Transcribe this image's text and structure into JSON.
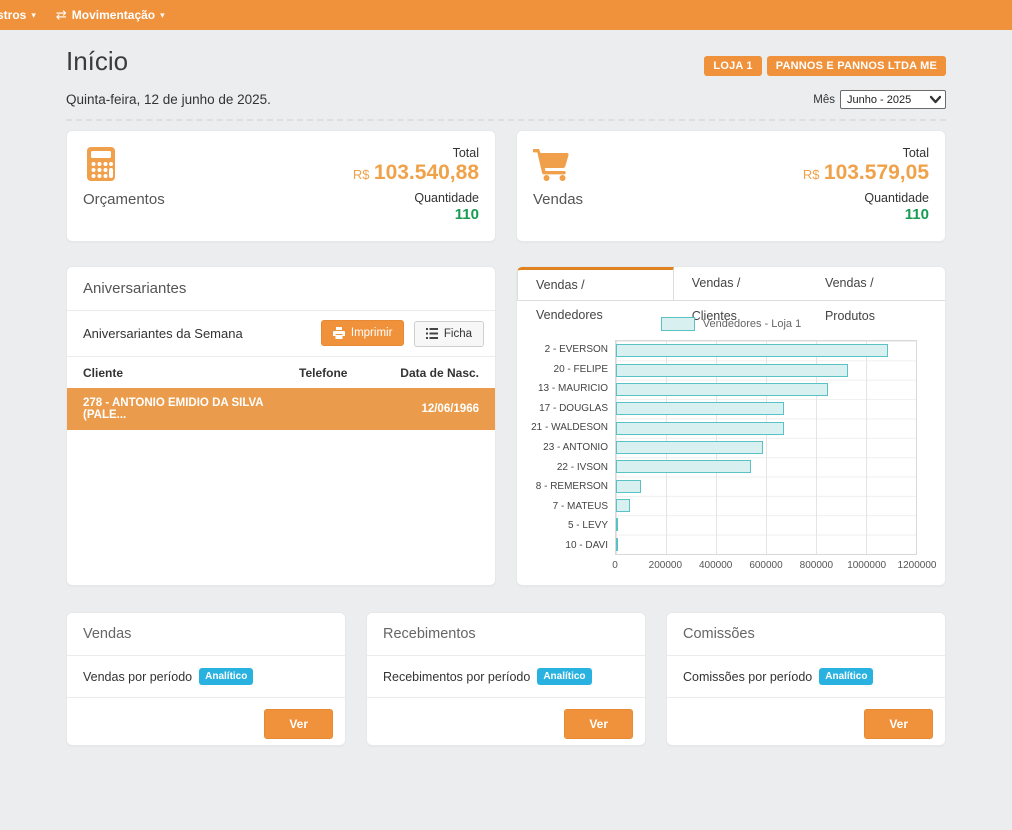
{
  "navbar": {
    "items": [
      {
        "label": "stros"
      },
      {
        "label": "Movimentação"
      }
    ]
  },
  "header": {
    "title": "Início",
    "store_badge": "LOJA 1",
    "company_badge": "PANNOS E PANNOS LTDA ME",
    "date": "Quinta-feira, 12 de junho de 2025.",
    "month_label": "Mês",
    "month_value": "Junho - 2025"
  },
  "summary_cards": [
    {
      "title": "Orçamentos",
      "icon": "calculator-icon",
      "total_label": "Total",
      "currency": "R$",
      "total": "103.540,88",
      "quantity_label": "Quantidade",
      "quantity": "110"
    },
    {
      "title": "Vendas",
      "icon": "cart-icon",
      "total_label": "Total",
      "currency": "R$",
      "total": "103.579,05",
      "quantity_label": "Quantidade",
      "quantity": "110"
    }
  ],
  "birthdays": {
    "title": "Aniversariantes",
    "subtitle": "Aniversariantes da Semana",
    "print_label": "Imprimir",
    "ficha_label": "Ficha",
    "columns": [
      "Cliente",
      "Telefone",
      "Data de Nasc."
    ],
    "rows": [
      {
        "cliente": "278 - ANTONIO EMIDIO DA SILVA (PALE...",
        "telefone": "",
        "nascimento": "12/06/1966"
      }
    ]
  },
  "sales_panel": {
    "tabs": [
      "Vendas / Vendedores",
      "Vendas / Clientes",
      "Vendas / Produtos"
    ],
    "active_tab": 0
  },
  "chart_data": {
    "type": "bar",
    "orientation": "horizontal",
    "title": "Vendedores - Loja 1",
    "legend": "Vendedores - Loja 1",
    "legend_position": "top-center",
    "grid": true,
    "categories": [
      "2 - EVERSON",
      "20 - FELIPE",
      "13 - MAURICIO",
      "17 - DOUGLAS",
      "21 - WALDESON",
      "23 - ANTONIO",
      "22 - IVSON",
      "8 - REMERSON",
      "7 - MATEUS",
      "5 - LEVY",
      "10 - DAVI"
    ],
    "values": [
      1086000,
      929000,
      846000,
      673000,
      673000,
      587000,
      539000,
      100000,
      57000,
      8000,
      2000
    ],
    "xlim": [
      0,
      1200000
    ],
    "tick_labels": [
      "0",
      "200000",
      "400000",
      "600000",
      "800000",
      "1000000",
      "1200000"
    ],
    "xlabel": "",
    "ylabel": "",
    "bar_fill": "#d9f0f0",
    "bar_border": "#5ac2c4"
  },
  "bottom_cards": [
    {
      "title": "Vendas",
      "row_label": "Vendas por período",
      "badge": "Analítico",
      "button": "Ver"
    },
    {
      "title": "Recebimentos",
      "row_label": "Recebimentos por período",
      "badge": "Analítico",
      "button": "Ver"
    },
    {
      "title": "Comissões",
      "row_label": "Comissões por período",
      "badge": "Analítico",
      "button": "Ver"
    }
  ],
  "colors": {
    "navbar_orange": "#f0923c",
    "accent_orange": "#f0a24b",
    "tab_accent_orange": "#e0821f",
    "quantity_green": "#189b52",
    "badge_cyan": "#29b2e0",
    "row_highlight_orange": "#ea9c4c",
    "bar_fill_teal": "#d9f0f0",
    "bar_border_teal": "#5ac2c4"
  }
}
